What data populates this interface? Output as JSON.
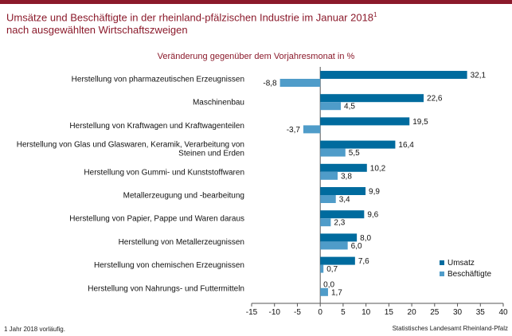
{
  "header": {
    "title_line1": "Umsätze und Beschäftigte in der rheinland-pfälzischen Industrie im Januar 2018",
    "title_footnote_mark": "1",
    "title_line2": "nach ausgewählten Wirtschaftszweigen"
  },
  "chart_data": {
    "type": "bar",
    "orientation": "horizontal",
    "subtitle": "Veränderung gegenüber dem Vorjahresmonat in %",
    "categories": [
      [
        "Herstellung von pharmazeutischen Erzeugnissen"
      ],
      [
        "Maschinenbau"
      ],
      [
        "Herstellung von Kraftwagen und Kraftwagenteilen"
      ],
      [
        "Herstellung von Glas und Glaswaren, Keramik, Verarbeitung von",
        "Steinen und Erden"
      ],
      [
        "Herstellung von Gummi- und Kunststoffwaren"
      ],
      [
        "Metallerzeugung und -bearbeitung"
      ],
      [
        "Herstellung von Papier, Pappe und Waren daraus"
      ],
      [
        "Herstellung von Metallerzeugnissen"
      ],
      [
        "Herstellung von chemischen Erzeugnissen"
      ],
      [
        "Herstellung von Nahrungs- und Futtermitteln"
      ]
    ],
    "series": [
      {
        "name": "Umsatz",
        "color": "#006b9e",
        "values": [
          32.1,
          22.6,
          19.5,
          16.4,
          10.2,
          9.9,
          9.6,
          8.0,
          7.6,
          0.0
        ],
        "labels": [
          "32,1",
          "22,6",
          "19,5",
          "16,4",
          "10,2",
          "9,9",
          "9,6",
          "8,0",
          "7,6",
          "0,0"
        ]
      },
      {
        "name": "Beschäftigte",
        "color": "#4f9cc9",
        "values": [
          -8.8,
          4.5,
          -3.7,
          5.5,
          3.8,
          3.4,
          2.3,
          6.0,
          0.7,
          1.7
        ],
        "labels": [
          "-8,8",
          "4,5",
          "-3,7",
          "5,5",
          "3,8",
          "3,4",
          "2,3",
          "6,0",
          "0,7",
          "1,7"
        ]
      }
    ],
    "xlim": [
      -15,
      40
    ],
    "xticks": [
      -15,
      -10,
      -5,
      0,
      5,
      10,
      15,
      20,
      25,
      30,
      35,
      40
    ],
    "grid": false,
    "legend": "bottom-right"
  },
  "footer": {
    "footnote": "1 Jahr 2018 vorläufig.",
    "source": "Statistisches Landesamt Rheinland-Pfalz"
  }
}
